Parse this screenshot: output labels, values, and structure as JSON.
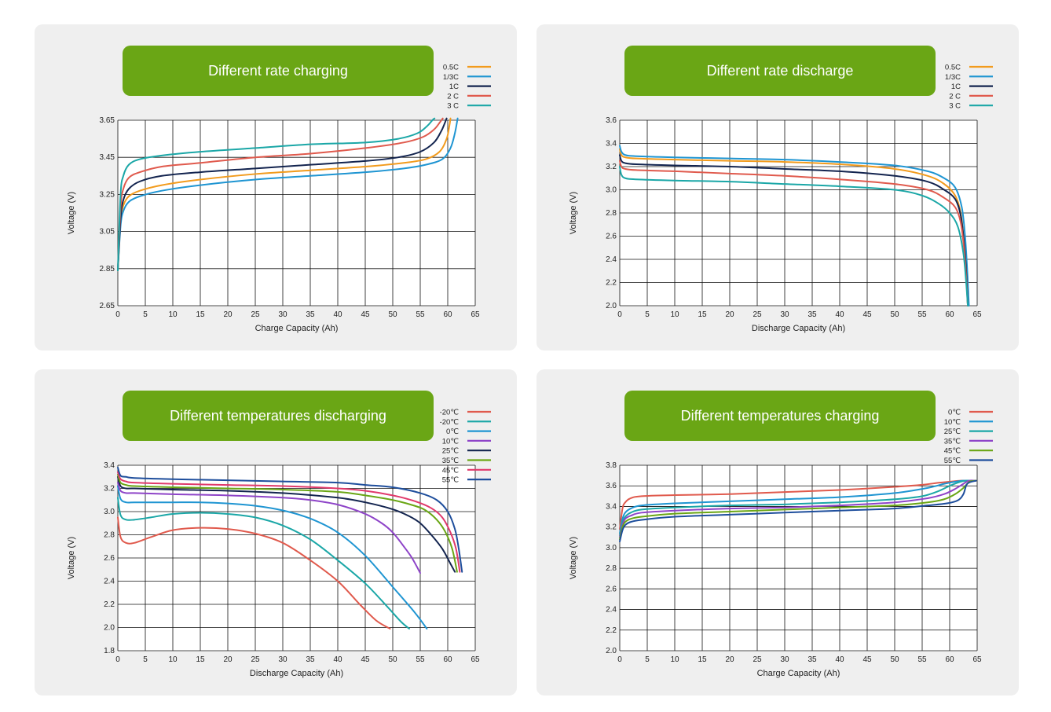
{
  "chart_data": [
    {
      "type": "line",
      "title": "Different rate charging",
      "xlabel": "Charge Capacity (Ah)",
      "ylabel": "Voltage (V)",
      "xlim": [
        0,
        65
      ],
      "ylim": [
        2.65,
        3.65
      ],
      "xticks": [
        "0",
        "5",
        "10",
        "15",
        "20",
        "25",
        "30",
        "35",
        "40",
        "45",
        "50",
        "55",
        "60",
        "65"
      ],
      "yticks": [
        "3.65",
        "3.45",
        "3.25",
        "3.05",
        "2.85",
        "2.65"
      ],
      "grid": true,
      "legend_position": "top-right",
      "series": [
        {
          "name": "0.5C",
          "color": "#f29b1d",
          "x": [
            0,
            0.5,
            1,
            2,
            4,
            8,
            15,
            25,
            35,
            45,
            52,
            56,
            58.5,
            59.8,
            60.3,
            60.5
          ],
          "y": [
            2.84,
            3.1,
            3.19,
            3.24,
            3.27,
            3.3,
            3.33,
            3.36,
            3.38,
            3.4,
            3.42,
            3.44,
            3.48,
            3.55,
            3.62,
            3.66
          ]
        },
        {
          "name": "1/3C",
          "color": "#1f95d2",
          "x": [
            0,
            0.5,
            1,
            2,
            4,
            8,
            15,
            25,
            35,
            45,
            52,
            56,
            59,
            60.5,
            61.3,
            61.8
          ],
          "y": [
            2.84,
            3.08,
            3.16,
            3.21,
            3.24,
            3.27,
            3.3,
            3.33,
            3.35,
            3.37,
            3.39,
            3.41,
            3.44,
            3.5,
            3.58,
            3.66
          ]
        },
        {
          "name": "1C",
          "color": "#13244f",
          "x": [
            0,
            0.5,
            1,
            2,
            4,
            8,
            15,
            25,
            35,
            45,
            51,
            55,
            57.5,
            58.8,
            59.4,
            59.8
          ],
          "y": [
            2.84,
            3.12,
            3.22,
            3.28,
            3.32,
            3.35,
            3.37,
            3.39,
            3.41,
            3.43,
            3.45,
            3.48,
            3.53,
            3.59,
            3.63,
            3.66
          ]
        },
        {
          "name": "2 C",
          "color": "#e05a4d",
          "x": [
            0,
            0.5,
            1,
            2,
            4,
            8,
            15,
            25,
            35,
            45,
            52,
            55.5,
            57.5,
            58.6,
            59.1
          ],
          "y": [
            2.84,
            3.18,
            3.28,
            3.34,
            3.37,
            3.4,
            3.42,
            3.45,
            3.47,
            3.5,
            3.53,
            3.56,
            3.6,
            3.64,
            3.66
          ]
        },
        {
          "name": "3 C",
          "color": "#1ba7a7",
          "x": [
            0,
            0.5,
            1,
            2,
            4,
            8,
            15,
            25,
            35,
            45,
            51,
            54.5,
            56.3,
            57.2,
            57.6
          ],
          "y": [
            2.84,
            3.25,
            3.35,
            3.41,
            3.44,
            3.46,
            3.48,
            3.5,
            3.52,
            3.53,
            3.55,
            3.58,
            3.62,
            3.65,
            3.66
          ]
        }
      ]
    },
    {
      "type": "line",
      "title": "Different rate discharge",
      "xlabel": "Discharge Capacity (Ah)",
      "ylabel": "Voltage (V)",
      "xlim": [
        0,
        65
      ],
      "ylim": [
        2.0,
        3.6
      ],
      "xticks": [
        "0",
        "5",
        "10",
        "15",
        "20",
        "25",
        "30",
        "35",
        "40",
        "45",
        "50",
        "55",
        "60",
        "65"
      ],
      "yticks": [
        "3.6",
        "3.4",
        "3.2",
        "3.0",
        "2.8",
        "2.6",
        "2.4",
        "2.2",
        "2.0"
      ],
      "grid": true,
      "legend_position": "top-right",
      "series": [
        {
          "name": "0.5C",
          "color": "#f29b1d",
          "x": [
            0,
            0.3,
            1,
            3,
            10,
            20,
            30,
            40,
            50,
            56,
            59,
            61,
            62,
            62.6,
            63,
            63.3
          ],
          "y": [
            3.35,
            3.3,
            3.28,
            3.27,
            3.26,
            3.25,
            3.24,
            3.22,
            3.18,
            3.12,
            3.05,
            2.95,
            2.8,
            2.55,
            2.3,
            2.0
          ]
        },
        {
          "name": "1/3C",
          "color": "#1f95d2",
          "x": [
            0,
            0.3,
            1,
            3,
            10,
            20,
            30,
            40,
            50,
            56,
            59,
            61,
            62.2,
            62.8,
            63.2,
            63.5
          ],
          "y": [
            3.38,
            3.33,
            3.3,
            3.29,
            3.28,
            3.27,
            3.26,
            3.24,
            3.21,
            3.16,
            3.1,
            3.02,
            2.85,
            2.6,
            2.3,
            2.0
          ]
        },
        {
          "name": "1C",
          "color": "#13244f",
          "x": [
            0,
            0.3,
            1,
            3,
            10,
            20,
            30,
            40,
            50,
            56,
            59,
            61,
            62,
            62.6,
            63,
            63.3
          ],
          "y": [
            3.3,
            3.25,
            3.23,
            3.22,
            3.21,
            3.2,
            3.18,
            3.16,
            3.12,
            3.07,
            3.0,
            2.92,
            2.78,
            2.55,
            2.3,
            2.0
          ]
        },
        {
          "name": "2 C",
          "color": "#e05a4d",
          "x": [
            0,
            0.3,
            1,
            3,
            10,
            20,
            30,
            40,
            50,
            56,
            59,
            61,
            62,
            62.6,
            63,
            63.3
          ],
          "y": [
            3.25,
            3.2,
            3.18,
            3.17,
            3.16,
            3.14,
            3.12,
            3.09,
            3.05,
            3.0,
            2.93,
            2.85,
            2.72,
            2.5,
            2.25,
            2.0
          ]
        },
        {
          "name": "3 C",
          "color": "#1ba7a7",
          "x": [
            0,
            0.3,
            1,
            3,
            10,
            20,
            30,
            40,
            50,
            55,
            58,
            60,
            61.5,
            62.5,
            63,
            63.3
          ],
          "y": [
            3.2,
            3.13,
            3.1,
            3.09,
            3.08,
            3.07,
            3.05,
            3.03,
            3.0,
            2.95,
            2.88,
            2.8,
            2.68,
            2.45,
            2.2,
            2.0
          ]
        }
      ]
    },
    {
      "type": "line",
      "title": "Different temperatures discharging",
      "xlabel": "Discharge Capacity (Ah)",
      "ylabel": "Voltage (V)",
      "xlim": [
        0,
        65
      ],
      "ylim": [
        1.8,
        3.4
      ],
      "xticks": [
        "0",
        "5",
        "10",
        "15",
        "20",
        "25",
        "30",
        "35",
        "40",
        "45",
        "50",
        "55",
        "60",
        "65"
      ],
      "yticks": [
        "3.4",
        "3.2",
        "3.0",
        "2.8",
        "2.6",
        "2.4",
        "2.2",
        "2.0",
        "1.8"
      ],
      "grid": true,
      "legend_position": "top-right",
      "series": [
        {
          "name": "-20℃",
          "color": "#e05a4d",
          "x": [
            0,
            0.5,
            1.5,
            3,
            6,
            10,
            15,
            20,
            25,
            30,
            35,
            40,
            44,
            47,
            49.5
          ],
          "y": [
            2.95,
            2.78,
            2.73,
            2.73,
            2.78,
            2.84,
            2.86,
            2.85,
            2.81,
            2.73,
            2.58,
            2.4,
            2.2,
            2.06,
            1.99
          ]
        },
        {
          "name": "-20℃",
          "color": "#1ba7a7",
          "x": [
            0,
            0.5,
            1.5,
            3,
            6,
            10,
            15,
            20,
            25,
            30,
            35,
            40,
            45,
            49,
            51.5,
            53
          ],
          "y": [
            3.12,
            2.97,
            2.93,
            2.93,
            2.95,
            2.98,
            2.99,
            2.98,
            2.95,
            2.88,
            2.76,
            2.58,
            2.38,
            2.18,
            2.05,
            1.99
          ]
        },
        {
          "name": "0℃",
          "color": "#1f95d2",
          "x": [
            0,
            0.5,
            1.5,
            3,
            6,
            10,
            15,
            20,
            25,
            30,
            35,
            40,
            45,
            50,
            54,
            56.2
          ],
          "y": [
            3.22,
            3.11,
            3.08,
            3.08,
            3.08,
            3.08,
            3.08,
            3.07,
            3.05,
            3.01,
            2.94,
            2.82,
            2.62,
            2.35,
            2.13,
            1.99
          ]
        },
        {
          "name": "10℃",
          "color": "#8e44c8",
          "x": [
            0,
            0.5,
            1.5,
            3,
            10,
            20,
            30,
            35,
            40,
            45,
            48,
            50,
            52,
            53.5,
            55
          ],
          "y": [
            3.25,
            3.18,
            3.16,
            3.16,
            3.15,
            3.14,
            3.12,
            3.1,
            3.06,
            2.98,
            2.9,
            2.82,
            2.7,
            2.6,
            2.47
          ]
        },
        {
          "name": "25℃",
          "color": "#13244f",
          "x": [
            0,
            0.5,
            1.5,
            3,
            10,
            20,
            30,
            40,
            45,
            50,
            53,
            55,
            57,
            59,
            60.5,
            61.3
          ],
          "y": [
            3.3,
            3.22,
            3.2,
            3.2,
            3.19,
            3.18,
            3.16,
            3.12,
            3.08,
            3.02,
            2.96,
            2.9,
            2.8,
            2.68,
            2.55,
            2.48
          ]
        },
        {
          "name": "35℃",
          "color": "#6aa615",
          "x": [
            0,
            0.5,
            1.5,
            3,
            10,
            20,
            30,
            40,
            45,
            50,
            54,
            56,
            58,
            59.5,
            60.8,
            61.7
          ],
          "y": [
            3.32,
            3.25,
            3.23,
            3.22,
            3.21,
            3.2,
            3.19,
            3.17,
            3.14,
            3.1,
            3.05,
            3.01,
            2.93,
            2.83,
            2.68,
            2.48
          ]
        },
        {
          "name": "45℃",
          "color": "#e0396b",
          "x": [
            0,
            0.5,
            1.5,
            3,
            10,
            20,
            30,
            40,
            45,
            50,
            54,
            57,
            59,
            60.5,
            61.5,
            62.2
          ],
          "y": [
            3.34,
            3.28,
            3.26,
            3.25,
            3.24,
            3.23,
            3.22,
            3.2,
            3.18,
            3.14,
            3.09,
            3.03,
            2.95,
            2.82,
            2.68,
            2.48
          ]
        },
        {
          "name": "55℃",
          "color": "#1e4e9c",
          "x": [
            0,
            0.5,
            1.5,
            3,
            10,
            20,
            30,
            40,
            45,
            50,
            55,
            58,
            60,
            61.3,
            62,
            62.6
          ],
          "y": [
            3.38,
            3.31,
            3.3,
            3.29,
            3.28,
            3.27,
            3.26,
            3.25,
            3.23,
            3.21,
            3.16,
            3.1,
            3.0,
            2.85,
            2.68,
            2.48
          ]
        }
      ]
    },
    {
      "type": "line",
      "title": "Different temperatures charging",
      "xlabel": "Charge Capacity (Ah)",
      "ylabel": "Voltage (V)",
      "xlim": [
        0,
        65
      ],
      "ylim": [
        2.0,
        3.8
      ],
      "xticks": [
        "0",
        "5",
        "10",
        "15",
        "20",
        "25",
        "30",
        "35",
        "40",
        "45",
        "50",
        "55",
        "60",
        "65"
      ],
      "yticks": [
        "3.8",
        "3.6",
        "3.4",
        "3.2",
        "3.0",
        "2.8",
        "2.6",
        "2.4",
        "2.2",
        "2.0"
      ],
      "grid": true,
      "legend_position": "top-right",
      "series": [
        {
          "name": "0℃",
          "color": "#e05a4d",
          "x": [
            0,
            0.5,
            1,
            2,
            4,
            10,
            20,
            30,
            40,
            50,
            55,
            58,
            60,
            62,
            63.5
          ],
          "y": [
            3.18,
            3.38,
            3.44,
            3.48,
            3.5,
            3.51,
            3.52,
            3.54,
            3.56,
            3.59,
            3.61,
            3.63,
            3.64,
            3.65,
            3.65
          ]
        },
        {
          "name": "10℃",
          "color": "#1f95d2",
          "x": [
            0,
            0.5,
            1,
            2,
            4,
            10,
            20,
            30,
            40,
            50,
            56,
            59,
            61,
            62.5,
            64
          ],
          "y": [
            3.14,
            3.28,
            3.34,
            3.38,
            3.41,
            3.43,
            3.45,
            3.47,
            3.49,
            3.53,
            3.58,
            3.62,
            3.64,
            3.65,
            3.65
          ]
        },
        {
          "name": "25℃",
          "color": "#1ba7a7",
          "x": [
            0,
            0.5,
            1,
            2,
            4,
            10,
            20,
            30,
            40,
            50,
            55,
            58,
            60,
            62,
            63,
            64.5
          ],
          "y": [
            3.12,
            3.24,
            3.3,
            3.34,
            3.37,
            3.39,
            3.41,
            3.42,
            3.44,
            3.47,
            3.5,
            3.55,
            3.6,
            3.64,
            3.65,
            3.65
          ]
        },
        {
          "name": "35℃",
          "color": "#8e44c8",
          "x": [
            0,
            0.5,
            1,
            2,
            4,
            10,
            20,
            30,
            40,
            50,
            56,
            59,
            61,
            62.5,
            63.5,
            64.8
          ],
          "y": [
            3.1,
            3.22,
            3.28,
            3.31,
            3.34,
            3.36,
            3.38,
            3.39,
            3.41,
            3.44,
            3.48,
            3.52,
            3.57,
            3.62,
            3.65,
            3.65
          ]
        },
        {
          "name": "45℃",
          "color": "#6aa615",
          "x": [
            0,
            0.5,
            1,
            2,
            4,
            10,
            20,
            30,
            40,
            50,
            56,
            59,
            61,
            62.5,
            63.6,
            64.8
          ],
          "y": [
            3.08,
            3.2,
            3.25,
            3.28,
            3.3,
            3.33,
            3.35,
            3.37,
            3.39,
            3.41,
            3.44,
            3.47,
            3.52,
            3.58,
            3.64,
            3.65
          ]
        },
        {
          "name": "55℃",
          "color": "#1e4e9c",
          "x": [
            0,
            0.5,
            1,
            2,
            4,
            10,
            20,
            30,
            40,
            50,
            56,
            59.5,
            61.5,
            62.5,
            63.2,
            64.8
          ],
          "y": [
            3.06,
            3.17,
            3.22,
            3.25,
            3.27,
            3.3,
            3.32,
            3.34,
            3.36,
            3.38,
            3.41,
            3.43,
            3.46,
            3.52,
            3.62,
            3.65
          ]
        }
      ]
    }
  ]
}
